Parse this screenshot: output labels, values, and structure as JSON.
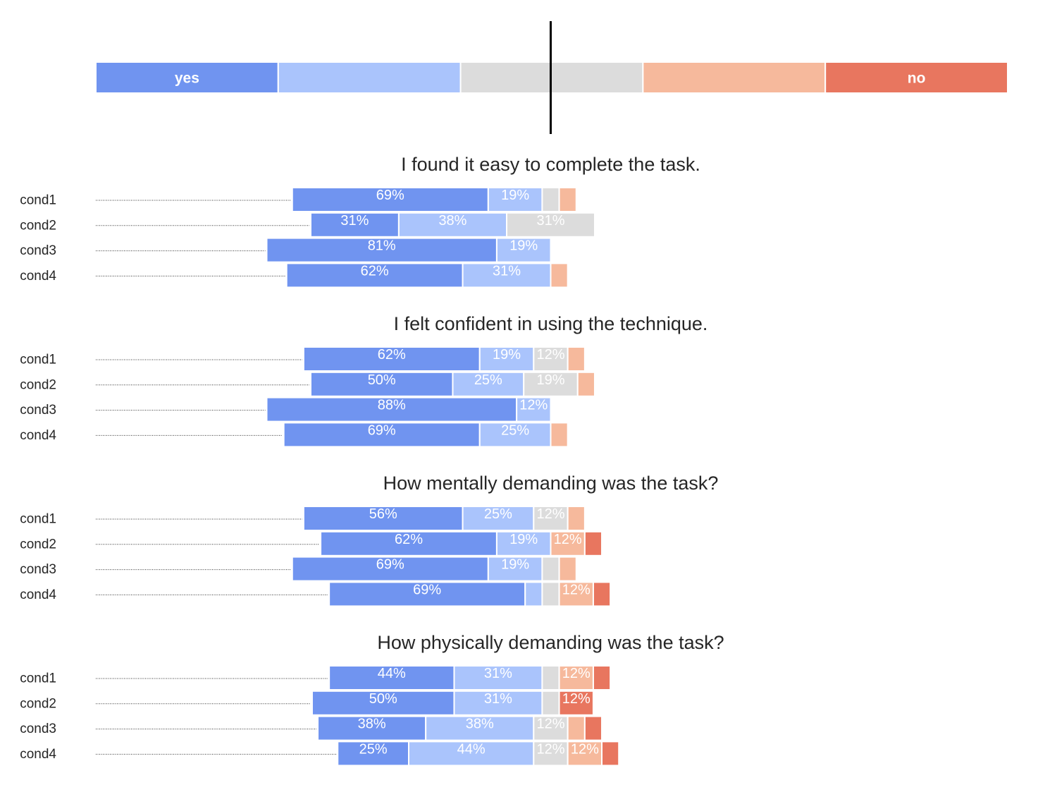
{
  "chart_data": {
    "type": "bar",
    "subtype": "diverging-stacked-likert",
    "legend": {
      "placement": "top",
      "scale_points": 5,
      "labels": [
        "yes",
        "",
        "",
        "",
        "no"
      ]
    },
    "colors": [
      "#7094f0",
      "#aac4fc",
      "#dcdcdc",
      "#f6b99c",
      "#e8765f"
    ],
    "category_labels": [
      "cond1",
      "cond2",
      "cond3",
      "cond4"
    ],
    "grid": false,
    "panels": [
      {
        "title": "I found it easy to complete the task.",
        "rows": [
          {
            "label": "cond1",
            "values": [
              69,
              19,
              6,
              6,
              0
            ],
            "labels": [
              "69%",
              "19%",
              "",
              "",
              ""
            ]
          },
          {
            "label": "cond2",
            "values": [
              31,
              38,
              31,
              0,
              0
            ],
            "labels": [
              "31%",
              "38%",
              "31%",
              "",
              ""
            ]
          },
          {
            "label": "cond3",
            "values": [
              81,
              19,
              0,
              0,
              0
            ],
            "labels": [
              "81%",
              "19%",
              "",
              "",
              ""
            ]
          },
          {
            "label": "cond4",
            "values": [
              62,
              31,
              0,
              6,
              0
            ],
            "labels": [
              "62%",
              "31%",
              "",
              "",
              ""
            ]
          }
        ]
      },
      {
        "title": "I felt confident in using the technique.",
        "rows": [
          {
            "label": "cond1",
            "values": [
              62,
              19,
              12,
              6,
              0
            ],
            "labels": [
              "62%",
              "19%",
              "12%",
              "",
              ""
            ]
          },
          {
            "label": "cond2",
            "values": [
              50,
              25,
              19,
              6,
              0
            ],
            "labels": [
              "50%",
              "25%",
              "19%",
              "",
              ""
            ]
          },
          {
            "label": "cond3",
            "values": [
              88,
              12,
              0,
              0,
              0
            ],
            "labels": [
              "88%",
              "12%",
              "",
              "",
              ""
            ]
          },
          {
            "label": "cond4",
            "values": [
              69,
              25,
              0,
              6,
              0
            ],
            "labels": [
              "69%",
              "25%",
              "",
              "",
              ""
            ]
          }
        ]
      },
      {
        "title": "How mentally demanding was the task?",
        "rows": [
          {
            "label": "cond1",
            "values": [
              56,
              25,
              12,
              6,
              0
            ],
            "labels": [
              "56%",
              "25%",
              "12%",
              "",
              ""
            ]
          },
          {
            "label": "cond2",
            "values": [
              62,
              19,
              0,
              12,
              6
            ],
            "labels": [
              "62%",
              "19%",
              "",
              "12%",
              ""
            ]
          },
          {
            "label": "cond3",
            "values": [
              69,
              19,
              6,
              6,
              0
            ],
            "labels": [
              "69%",
              "19%",
              "",
              "",
              ""
            ]
          },
          {
            "label": "cond4",
            "values": [
              69,
              6,
              6,
              12,
              6
            ],
            "labels": [
              "69%",
              "",
              "",
              "12%",
              ""
            ]
          }
        ]
      },
      {
        "title": "How physically demanding was the task?",
        "rows": [
          {
            "label": "cond1",
            "values": [
              44,
              31,
              6,
              12,
              6
            ],
            "labels": [
              "44%",
              "31%",
              "",
              "12%",
              ""
            ]
          },
          {
            "label": "cond2",
            "values": [
              50,
              31,
              6,
              0,
              12
            ],
            "labels": [
              "50%",
              "31%",
              "",
              "",
              "12%"
            ]
          },
          {
            "label": "cond3",
            "values": [
              38,
              38,
              12,
              6,
              6
            ],
            "labels": [
              "38%",
              "38%",
              "12%",
              "",
              ""
            ]
          },
          {
            "label": "cond4",
            "values": [
              25,
              44,
              12,
              12,
              6
            ],
            "labels": [
              "25%",
              "44%",
              "12%",
              "12%",
              ""
            ]
          }
        ]
      }
    ]
  }
}
